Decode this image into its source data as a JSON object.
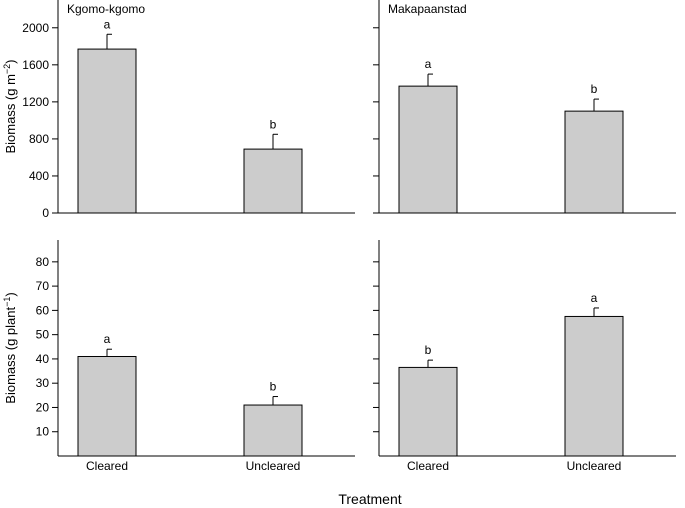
{
  "figure": {
    "xlabel": "Treatment",
    "bar_color": "#cccccc",
    "edge_color": "#000000"
  },
  "chart_data": [
    {
      "type": "bar",
      "panel": "top-left",
      "title": "Kgomo-kgomo",
      "ylabel_text": "Biomass (g m",
      "ylabel_sup": "−2",
      "ylabel_close": ")",
      "categories": [
        "Cleared",
        "Uncleared"
      ],
      "values": [
        1770,
        690
      ],
      "errors": [
        160,
        160
      ],
      "letters": [
        "a",
        "b"
      ],
      "ylim": [
        0,
        2300
      ],
      "yticks": [
        0,
        400,
        800,
        1200,
        1600,
        2000
      ],
      "show_ytick_labels": true,
      "show_xtick_labels": false
    },
    {
      "type": "bar",
      "panel": "top-right",
      "title": "Makapaanstad",
      "categories": [
        "Cleared",
        "Uncleared"
      ],
      "values": [
        1370,
        1100
      ],
      "errors": [
        130,
        130
      ],
      "letters": [
        "a",
        "b"
      ],
      "ylim": [
        0,
        2300
      ],
      "yticks": [
        0,
        400,
        800,
        1200,
        1600,
        2000
      ],
      "show_ytick_labels": false,
      "show_xtick_labels": false
    },
    {
      "type": "bar",
      "panel": "bottom-left",
      "title": "",
      "ylabel_text": "Biomass (g plant",
      "ylabel_sup": "−1",
      "ylabel_close": ")",
      "categories": [
        "Cleared",
        "Uncleared"
      ],
      "values": [
        41,
        21
      ],
      "errors": [
        3,
        3.5
      ],
      "letters": [
        "a",
        "b"
      ],
      "ylim": [
        0,
        89
      ],
      "yticks": [
        10,
        20,
        30,
        40,
        50,
        60,
        70,
        80
      ],
      "show_ytick_labels": true,
      "show_xtick_labels": true
    },
    {
      "type": "bar",
      "panel": "bottom-right",
      "title": "",
      "categories": [
        "Cleared",
        "Uncleared"
      ],
      "values": [
        36.5,
        57.5
      ],
      "errors": [
        3,
        3.5
      ],
      "letters": [
        "b",
        "a"
      ],
      "ylim": [
        0,
        89
      ],
      "yticks": [
        10,
        20,
        30,
        40,
        50,
        60,
        70,
        80
      ],
      "show_ytick_labels": false,
      "show_xtick_labels": true
    }
  ]
}
